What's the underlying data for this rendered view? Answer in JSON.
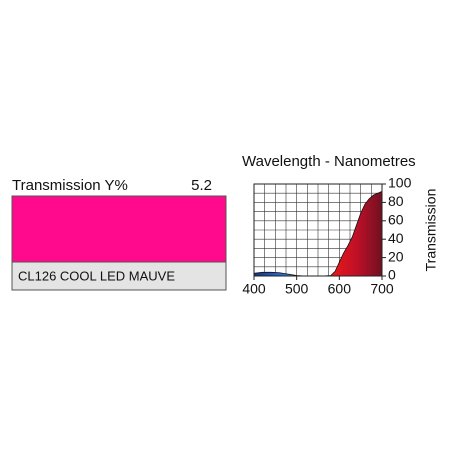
{
  "swatch": {
    "label": "Transmission Y%",
    "value": "5.2",
    "name": "CL126 COOL LED MAUVE",
    "color": "#ff0a8c"
  },
  "chart_data": {
    "type": "area",
    "title": "Wavelength - Nanometres",
    "y_label": "Transmission",
    "x": [
      400,
      420,
      440,
      460,
      480,
      500,
      520,
      540,
      560,
      580,
      590,
      600,
      610,
      620,
      630,
      640,
      650,
      660,
      670,
      680,
      690,
      700
    ],
    "values": [
      3,
      4,
      4,
      3.5,
      2,
      0.5,
      0,
      0,
      0,
      0.5,
      5,
      15,
      25,
      33,
      42,
      55,
      68,
      78,
      84,
      88,
      90,
      92
    ],
    "xlim": [
      400,
      700
    ],
    "ylim": [
      0,
      100
    ],
    "xticks": [
      400,
      500,
      600,
      700
    ],
    "yticks": [
      0,
      20,
      40,
      60,
      80,
      100
    ],
    "xgrid": [
      425,
      450,
      475,
      500,
      525,
      550,
      575,
      600,
      625,
      650,
      675
    ],
    "ygrid": [
      10,
      20,
      30,
      40,
      50,
      60,
      70,
      80,
      90
    ]
  }
}
